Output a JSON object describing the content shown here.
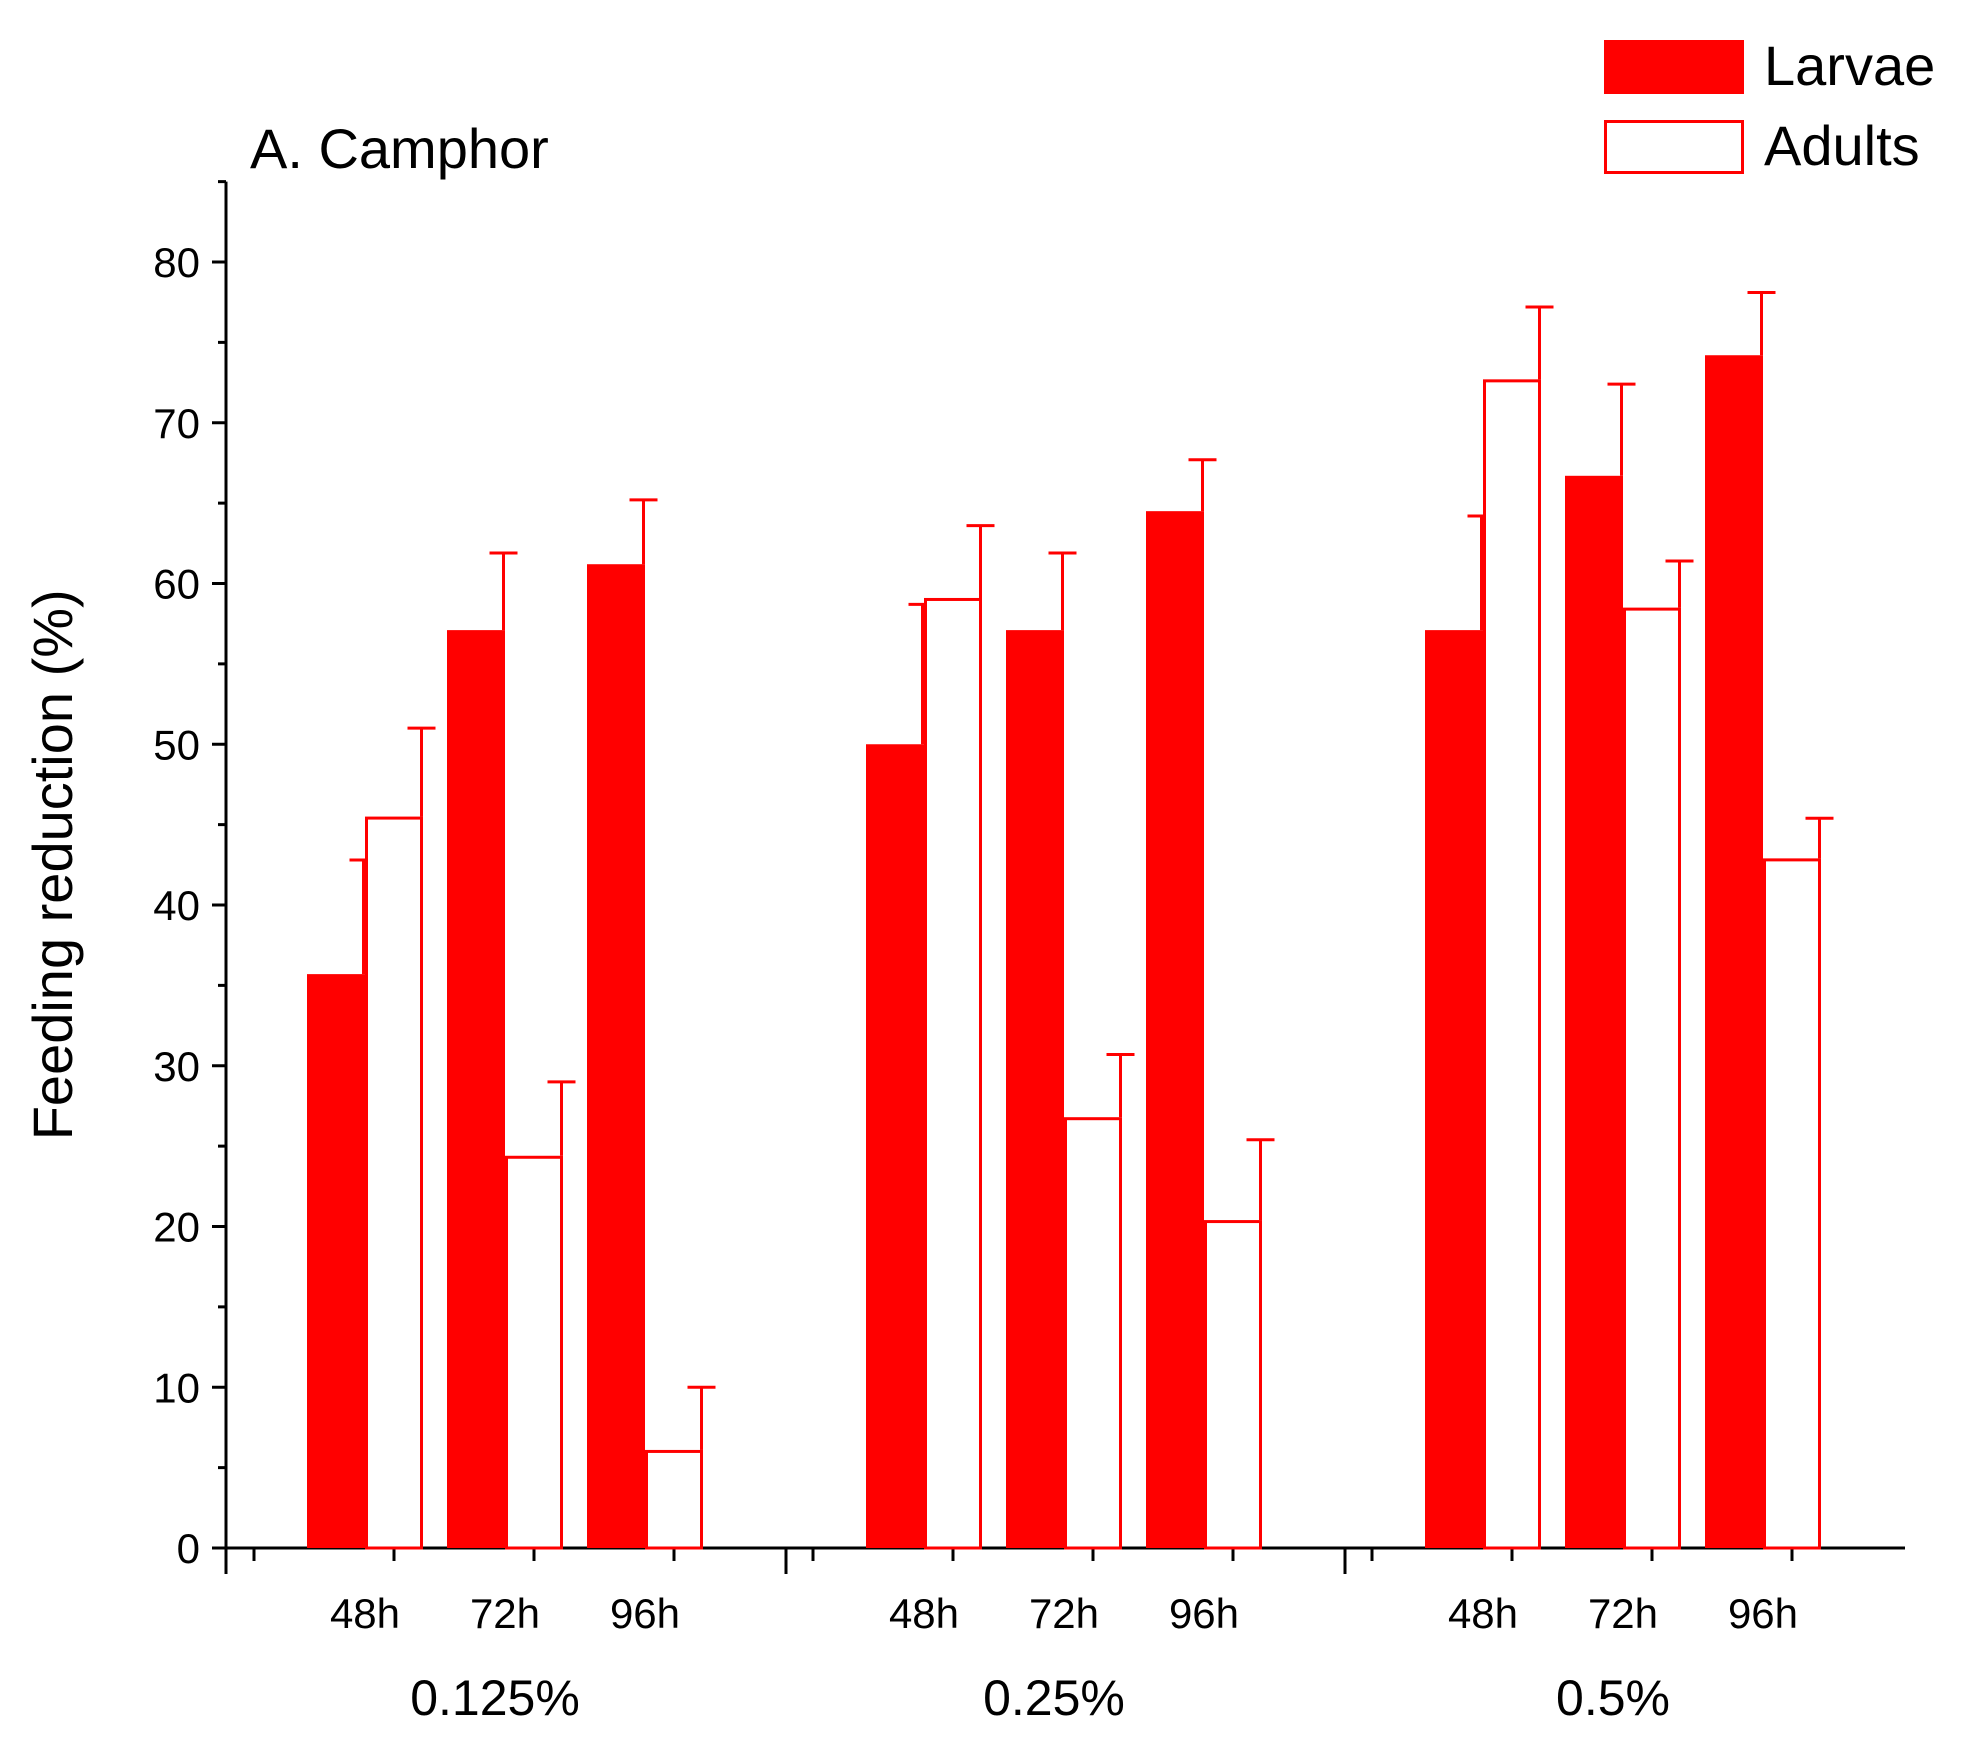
{
  "chart_data": {
    "type": "bar",
    "title": "A. Camphor",
    "xlabel": "",
    "ylabel": "Feeding reduction (%)",
    "ylim": [
      0,
      85
    ],
    "y_ticks": [
      0,
      10,
      20,
      30,
      40,
      50,
      60,
      70,
      80
    ],
    "groups": [
      {
        "label": "0.125%",
        "categories": [
          "48h",
          "72h",
          "96h"
        ]
      },
      {
        "label": "0.25%",
        "categories": [
          "48h",
          "72h",
          "96h"
        ]
      },
      {
        "label": "0.5%",
        "categories": [
          "48h",
          "72h",
          "96h"
        ]
      }
    ],
    "series": [
      {
        "name": "Larvae",
        "style": "filled",
        "color": "#ff0000",
        "values": [
          35.7,
          57.1,
          61.2,
          50.0,
          57.1,
          64.5,
          57.1,
          66.7,
          74.2
        ],
        "errors": [
          7.1,
          4.8,
          4.0,
          8.7,
          4.8,
          3.2,
          7.1,
          5.7,
          3.9
        ]
      },
      {
        "name": "Adults",
        "style": "hollow",
        "color": "#ff0000",
        "values": [
          45.5,
          24.4,
          6.1,
          59.1,
          26.8,
          20.4,
          72.7,
          58.5,
          42.9
        ],
        "errors": [
          5.5,
          4.6,
          3.9,
          4.5,
          3.9,
          5.0,
          4.5,
          2.9,
          2.5
        ]
      }
    ],
    "legend_position": "top-right",
    "grid": false
  }
}
